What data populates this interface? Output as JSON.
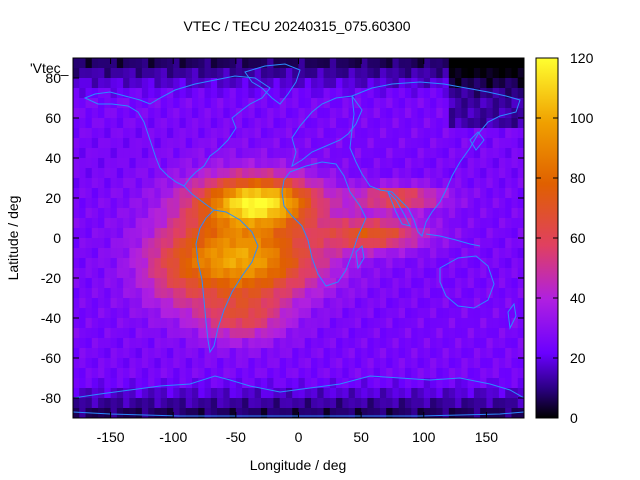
{
  "chart_data": {
    "type": "heatmap",
    "title": "VTEC / TECU 20240315_075.60300",
    "xlabel": "Longitude / deg",
    "ylabel": "Latitude / deg",
    "xlim": [
      -180,
      180
    ],
    "ylim": [
      -90,
      90
    ],
    "x_ticks": [
      -150,
      -100,
      -50,
      0,
      50,
      100,
      150
    ],
    "y_ticks": [
      -80,
      -60,
      -40,
      -20,
      0,
      20,
      40,
      60,
      80
    ],
    "colorbar": {
      "range": [
        0,
        120
      ],
      "ticks": [
        0,
        20,
        40,
        60,
        80,
        100,
        120
      ],
      "colors": [
        "#000000",
        "#2a0080",
        "#6a00ff",
        "#b020e0",
        "#e04060",
        "#e06000",
        "#f0a000",
        "#ffff30"
      ]
    },
    "legend_label": "'Vtec_",
    "coastline_color": "#2a8cff",
    "background_level_tecu": 25,
    "features": [
      {
        "name": "equatorial_anomaly_north",
        "lon": -30,
        "lat": 18,
        "peak_tecu": 110
      },
      {
        "name": "equatorial_anomaly_south",
        "lon": -40,
        "lat": -12,
        "peak_tecu": 85
      },
      {
        "name": "africa_extension",
        "lon": 60,
        "lat": 2,
        "peak_tecu": 75
      },
      {
        "name": "asia_extension",
        "lon": 80,
        "lat": 20,
        "peak_tecu": 70
      },
      {
        "name": "south_atlantic",
        "lon": -45,
        "lat": -40,
        "peak_tecu": 65
      }
    ]
  }
}
